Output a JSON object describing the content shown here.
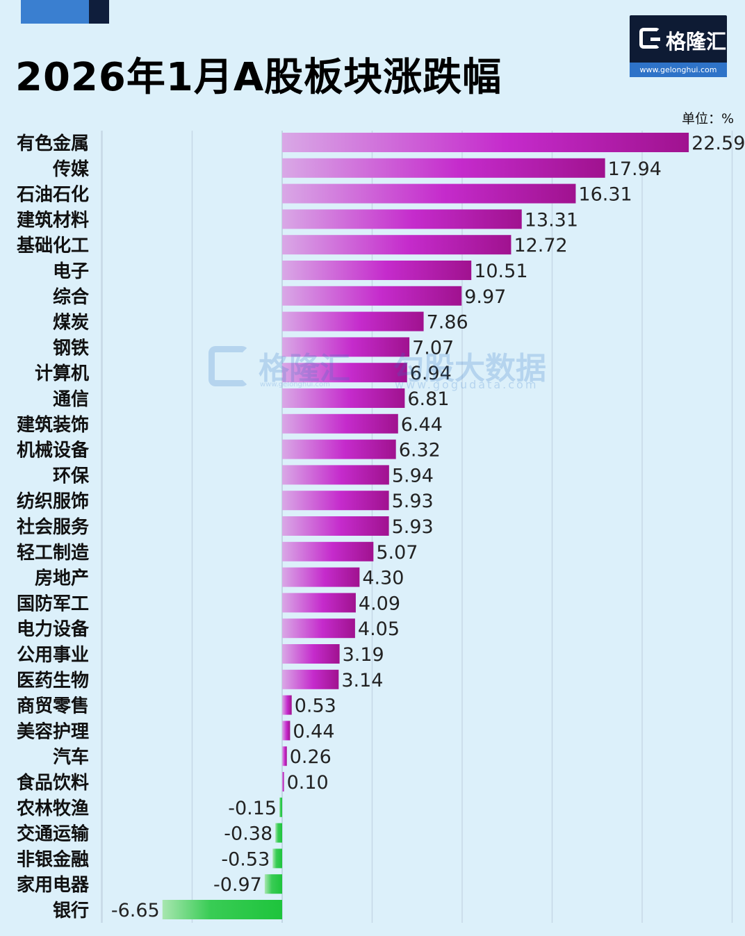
{
  "header": {
    "title": "2026年1月A股板块涨跌幅",
    "unit": "单位：%"
  },
  "logo": {
    "name": "格隆汇",
    "url": "www.gelonghui.com"
  },
  "watermark": {
    "brand1": "格隆汇",
    "brand1_url": "www.gelonghui.com",
    "brand2": "勾股大数据",
    "brand2_url": "www.gogudata.com"
  },
  "colors": {
    "positive": "#c21ac7",
    "negative": "#2fc64a",
    "background": "#dcf0fa"
  },
  "chart_data": {
    "type": "bar",
    "orientation": "horizontal",
    "title": "2026年1月A股板块涨跌幅",
    "unit": "%",
    "xlim": [
      -10,
      25
    ],
    "grid": true,
    "categories": [
      "有色金属",
      "传媒",
      "石油石化",
      "建筑材料",
      "基础化工",
      "电子",
      "综合",
      "煤炭",
      "钢铁",
      "计算机",
      "通信",
      "建筑装饰",
      "机械设备",
      "环保",
      "纺织服饰",
      "社会服务",
      "轻工制造",
      "房地产",
      "国防军工",
      "电力设备",
      "公用事业",
      "医药生物",
      "商贸零售",
      "美容护理",
      "汽车",
      "食品饮料",
      "农林牧渔",
      "交通运输",
      "非银金融",
      "家用电器",
      "银行"
    ],
    "values": [
      22.59,
      17.94,
      16.31,
      13.31,
      12.72,
      10.51,
      9.97,
      7.86,
      7.07,
      6.94,
      6.81,
      6.44,
      6.32,
      5.94,
      5.93,
      5.93,
      5.07,
      4.3,
      4.09,
      4.05,
      3.19,
      3.14,
      0.53,
      0.44,
      0.26,
      0.1,
      -0.15,
      -0.38,
      -0.53,
      -0.97,
      -6.65
    ],
    "labels": [
      "22.59",
      "17.94",
      "16.31",
      "13.31",
      "12.72",
      "10.51",
      "9.97",
      "7.86",
      "7.07",
      "6.94",
      "6.81",
      "6.44",
      "6.32",
      "5.94",
      "5.93",
      "5.93",
      "5.07",
      "4.30",
      "4.09",
      "4.05",
      "3.19",
      "3.14",
      "0.53",
      "0.44",
      "0.26",
      "0.10",
      "-0.15",
      "-0.38",
      "-0.53",
      "-0.97",
      "-6.65"
    ]
  }
}
